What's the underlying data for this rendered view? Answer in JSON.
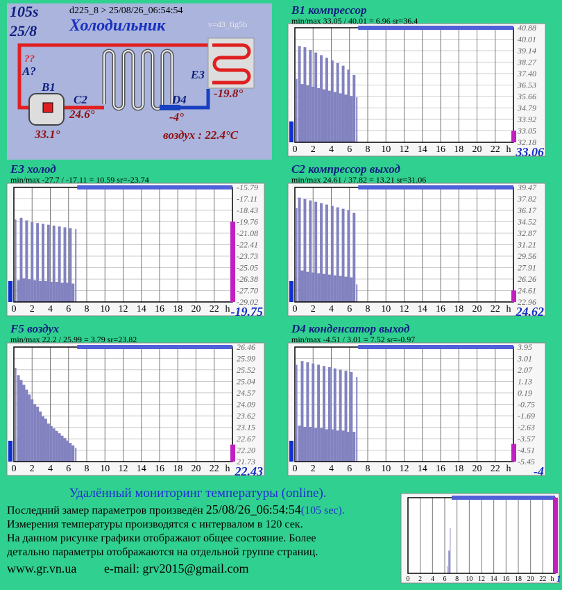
{
  "diagram": {
    "seconds": "105s",
    "date": "25/8",
    "header": "d225_8  >  25/08/26_06:54:54",
    "title": "Холодильник",
    "version": "v=d3_fig5b",
    "unknown": "??",
    "a_label": "A?",
    "b1": "B1",
    "b1_temp": "33.1°",
    "c2": "C2",
    "c2_temp": "24.6°",
    "d4": "D4",
    "d4_temp": "-4°",
    "e3": "E3",
    "e3_temp": "-19.8°",
    "air": "воздух : 22.4°C"
  },
  "footer": {
    "heading": "Удалённый мониторинг температуры (online).",
    "line2_text": "Последний замер параметров произведён ",
    "line2_time": "25/08/26_06:54:54",
    "line2_sec": "(105 sec).",
    "line3": "Измерения температуры  производятся с интервалом в 120 сек.",
    "line4": "На данном рисунке графики отображают общее состояние. Более",
    "line5": "детально параметры отображаются на отдельной группе страниц.",
    "site": "www.gr.vn.ua",
    "email": "e-mail: grv2015@gmail.com"
  },
  "chart_data": [
    {
      "type": "bar",
      "title": "B1 компрессор",
      "stats": "min/max  33.05 / 40.01 = 6.96     sr=36.4",
      "color": "#8282c0",
      "x": [
        0.2,
        0.5,
        0.8,
        1.1,
        1.4,
        1.7,
        2.0,
        2.3,
        2.6,
        2.9,
        3.2,
        3.5,
        3.8,
        4.1,
        4.4,
        4.7,
        5.0,
        5.3,
        5.6,
        5.9,
        6.2,
        6.5,
        6.8
      ],
      "values": [
        37.0,
        39.5,
        36.6,
        39.4,
        36.5,
        39.2,
        36.4,
        39.0,
        36.3,
        38.8,
        36.2,
        38.6,
        36.1,
        38.4,
        36.0,
        38.2,
        35.9,
        38.0,
        35.8,
        37.7,
        35.7,
        37.3,
        35.6
      ],
      "xlim": [
        0,
        24
      ],
      "xticks": [
        0,
        2,
        4,
        6,
        8,
        10,
        12,
        14,
        16,
        18,
        20,
        22
      ],
      "x_unit": "h",
      "ylim": [
        32.18,
        40.88
      ],
      "yticks": [
        40.88,
        40.01,
        39.14,
        38.27,
        {
          "value": 37.4,
          "label": "37.40"
        },
        36.53,
        35.66,
        34.79,
        33.92,
        33.05,
        32.18
      ],
      "current": 33.06
    },
    {
      "type": "bar",
      "title": "E3 холод",
      "stats": "min/max  -27.7 / -17.11 = 10.59     sr=-23.74",
      "color": "#8282c0",
      "x": [
        0.2,
        0.5,
        0.8,
        1.1,
        1.4,
        1.7,
        2.0,
        2.3,
        2.6,
        2.9,
        3.2,
        3.5,
        3.8,
        4.1,
        4.4,
        4.7,
        5.0,
        5.3,
        5.6,
        5.9,
        6.2,
        6.5,
        6.8
      ],
      "values": [
        -19.5,
        -26.5,
        -19.3,
        -26.3,
        -19.6,
        -26.4,
        -19.8,
        -26.5,
        -19.9,
        -26.6,
        -20.0,
        -26.6,
        -20.1,
        -26.7,
        -20.2,
        -26.7,
        -20.3,
        -26.8,
        -20.4,
        -26.8,
        -20.5,
        -26.9,
        -20.6
      ],
      "xlim": [
        0,
        24
      ],
      "xticks": [
        0,
        2,
        4,
        6,
        8,
        10,
        12,
        14,
        16,
        18,
        20,
        22
      ],
      "x_unit": "h",
      "ylim": [
        -29.02,
        -15.79
      ],
      "yticks": [
        -15.79,
        -17.11,
        -18.43,
        -19.76,
        -21.08,
        -22.41,
        -23.73,
        -25.05,
        -26.38,
        {
          "value": -27.7,
          "label": "-27.70"
        },
        -29.02
      ],
      "current": -19.75
    },
    {
      "type": "bar",
      "title": "C2 компрессор выход",
      "stats": "min/max  24.61 / 37.82 = 13.21     sr=31.06",
      "color": "#8282c0",
      "x": [
        0.2,
        0.5,
        0.8,
        1.1,
        1.4,
        1.7,
        2.0,
        2.3,
        2.6,
        2.9,
        3.2,
        3.5,
        3.8,
        4.1,
        4.4,
        4.7,
        5.0,
        5.3,
        5.6,
        5.9,
        6.2,
        6.5,
        6.8
      ],
      "values": [
        36.5,
        38.0,
        27.5,
        37.8,
        27.3,
        37.6,
        27.2,
        37.4,
        27.1,
        37.2,
        27.0,
        37.0,
        26.9,
        36.8,
        26.8,
        36.6,
        26.7,
        36.4,
        26.6,
        36.2,
        26.5,
        35.8,
        25.5
      ],
      "xlim": [
        0,
        24
      ],
      "xticks": [
        0,
        2,
        4,
        6,
        8,
        10,
        12,
        14,
        16,
        18,
        20,
        22
      ],
      "x_unit": "h",
      "ylim": [
        22.96,
        39.47
      ],
      "yticks": [
        39.47,
        37.82,
        36.17,
        34.52,
        32.87,
        31.21,
        29.56,
        27.91,
        26.26,
        24.61,
        22.96
      ],
      "current": 24.62
    },
    {
      "type": "bar",
      "title": "F5 воздух",
      "stats": "min/max  22.2 / 25.99 = 3.79     sr=23.82",
      "color": "#8282c0",
      "x": [
        0.2,
        0.5,
        0.8,
        1.1,
        1.4,
        1.7,
        2.0,
        2.3,
        2.6,
        2.9,
        3.2,
        3.5,
        3.8,
        4.1,
        4.4,
        4.7,
        5.0,
        5.3,
        5.6,
        5.9,
        6.2,
        6.5,
        6.8
      ],
      "values": [
        25.6,
        25.3,
        25.1,
        24.9,
        24.7,
        24.5,
        24.3,
        24.1,
        24.0,
        23.8,
        23.6,
        23.5,
        23.3,
        23.2,
        23.1,
        23.0,
        22.9,
        22.8,
        22.7,
        22.6,
        22.5,
        22.4,
        22.3
      ],
      "xlim": [
        0,
        24
      ],
      "xticks": [
        0,
        2,
        4,
        6,
        8,
        10,
        12,
        14,
        16,
        18,
        20,
        22
      ],
      "x_unit": "h",
      "ylim": [
        21.73,
        26.46
      ],
      "yticks": [
        26.46,
        25.99,
        25.52,
        25.04,
        24.57,
        24.09,
        23.62,
        23.15,
        22.67,
        {
          "value": 22.2,
          "label": "22.20"
        },
        21.73
      ],
      "current": 22.43
    },
    {
      "type": "bar",
      "title": "D4 конденсатор выход",
      "stats": "min/max  -4.51 / 3.01 = 7.52     sr=-0.97",
      "color": "#8282c0",
      "x": [
        0.2,
        0.5,
        0.8,
        1.1,
        1.4,
        1.7,
        2.0,
        2.3,
        2.6,
        2.9,
        3.2,
        3.5,
        3.8,
        4.1,
        4.4,
        4.7,
        5.0,
        5.3,
        5.6,
        5.9,
        6.2,
        6.5,
        6.8
      ],
      "values": [
        2.5,
        -2.5,
        2.8,
        -2.6,
        2.7,
        -2.6,
        2.6,
        -2.7,
        2.5,
        -2.7,
        2.4,
        -2.8,
        2.3,
        -2.8,
        2.2,
        -2.9,
        2.1,
        -2.9,
        2.0,
        -3.0,
        1.9,
        -3.0,
        1.5
      ],
      "xlim": [
        0,
        24
      ],
      "xticks": [
        0,
        2,
        4,
        6,
        8,
        10,
        12,
        14,
        16,
        18,
        20,
        22
      ],
      "x_unit": "h",
      "ylim": [
        -5.45,
        3.95
      ],
      "yticks": [
        3.95,
        3.01,
        2.07,
        1.13,
        0.19,
        -0.75,
        -1.69,
        -2.63,
        -3.57,
        -4.51,
        -5.45
      ],
      "current": -4
    },
    {
      "type": "bar",
      "color": "#8282c0",
      "x": [
        6.5,
        6.7,
        6.9
      ],
      "values": [
        0.1,
        0.3,
        0.6
      ],
      "xlim": [
        0,
        24
      ],
      "xticks": [
        0,
        2,
        4,
        6,
        8,
        10,
        12,
        14,
        16,
        18,
        20,
        22
      ],
      "x_unit": "h",
      "ylim": [
        0,
        1
      ],
      "current": 1
    }
  ]
}
